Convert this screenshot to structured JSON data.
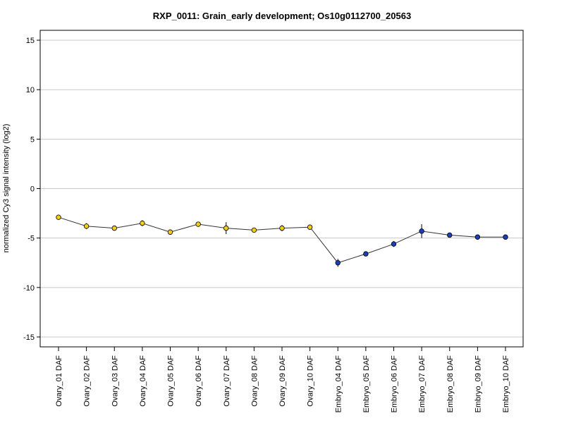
{
  "chart_data": {
    "type": "line",
    "title": "RXP_0011: Grain_early development; Os10g0112700_20563",
    "xlabel": "",
    "ylabel": "normalized Cy3 signal intensity (log2)",
    "ylim": [
      -16,
      16
    ],
    "yticks": [
      15,
      10,
      5,
      0,
      -5,
      -10,
      -15
    ],
    "ytick_labels": [
      "15",
      "10",
      "5",
      "0",
      "-5",
      "-10",
      "-15"
    ],
    "grid": true,
    "categories": [
      "Ovary_01 DAF",
      "Ovary_02 DAF",
      "Ovary_03 DAF",
      "Ovary_04 DAF",
      "Ovary_05 DAF",
      "Ovary_06 DAF",
      "Ovary_07 DAF",
      "Ovary_08 DAF",
      "Ovary_09 DAF",
      "Ovary_10 DAF",
      "Embryo_04 DAF",
      "Embryo_05 DAF",
      "Embryo_06 DAF",
      "Embryo_07 DAF",
      "Embryo_08 DAF",
      "Embryo_09 DAF",
      "Embryo_10 DAF"
    ],
    "values": [
      -2.9,
      -3.8,
      -4.0,
      -3.5,
      -4.4,
      -3.6,
      -4.0,
      -4.2,
      -4.0,
      -3.9,
      -7.5,
      -6.6,
      -5.6,
      -4.3,
      -4.7,
      -4.9,
      -4.9
    ],
    "error": [
      0.1,
      0.3,
      0.1,
      0.3,
      0.2,
      0.1,
      0.6,
      0.1,
      0.3,
      0.2,
      0.4,
      0.1,
      0.3,
      0.7,
      0.1,
      0.1,
      0.1
    ],
    "point_colors": [
      "#f2cc1a",
      "#f2cc1a",
      "#f2cc1a",
      "#f2cc1a",
      "#f2cc1a",
      "#f2cc1a",
      "#f2cc1a",
      "#f2cc1a",
      "#f2cc1a",
      "#f2cc1a",
      "#1a3fbf",
      "#1a3fbf",
      "#1a3fbf",
      "#1a3fbf",
      "#1a3fbf",
      "#1a3fbf",
      "#1a3fbf"
    ],
    "line_color": "#333333",
    "grid_color": "#c8c8c8"
  }
}
